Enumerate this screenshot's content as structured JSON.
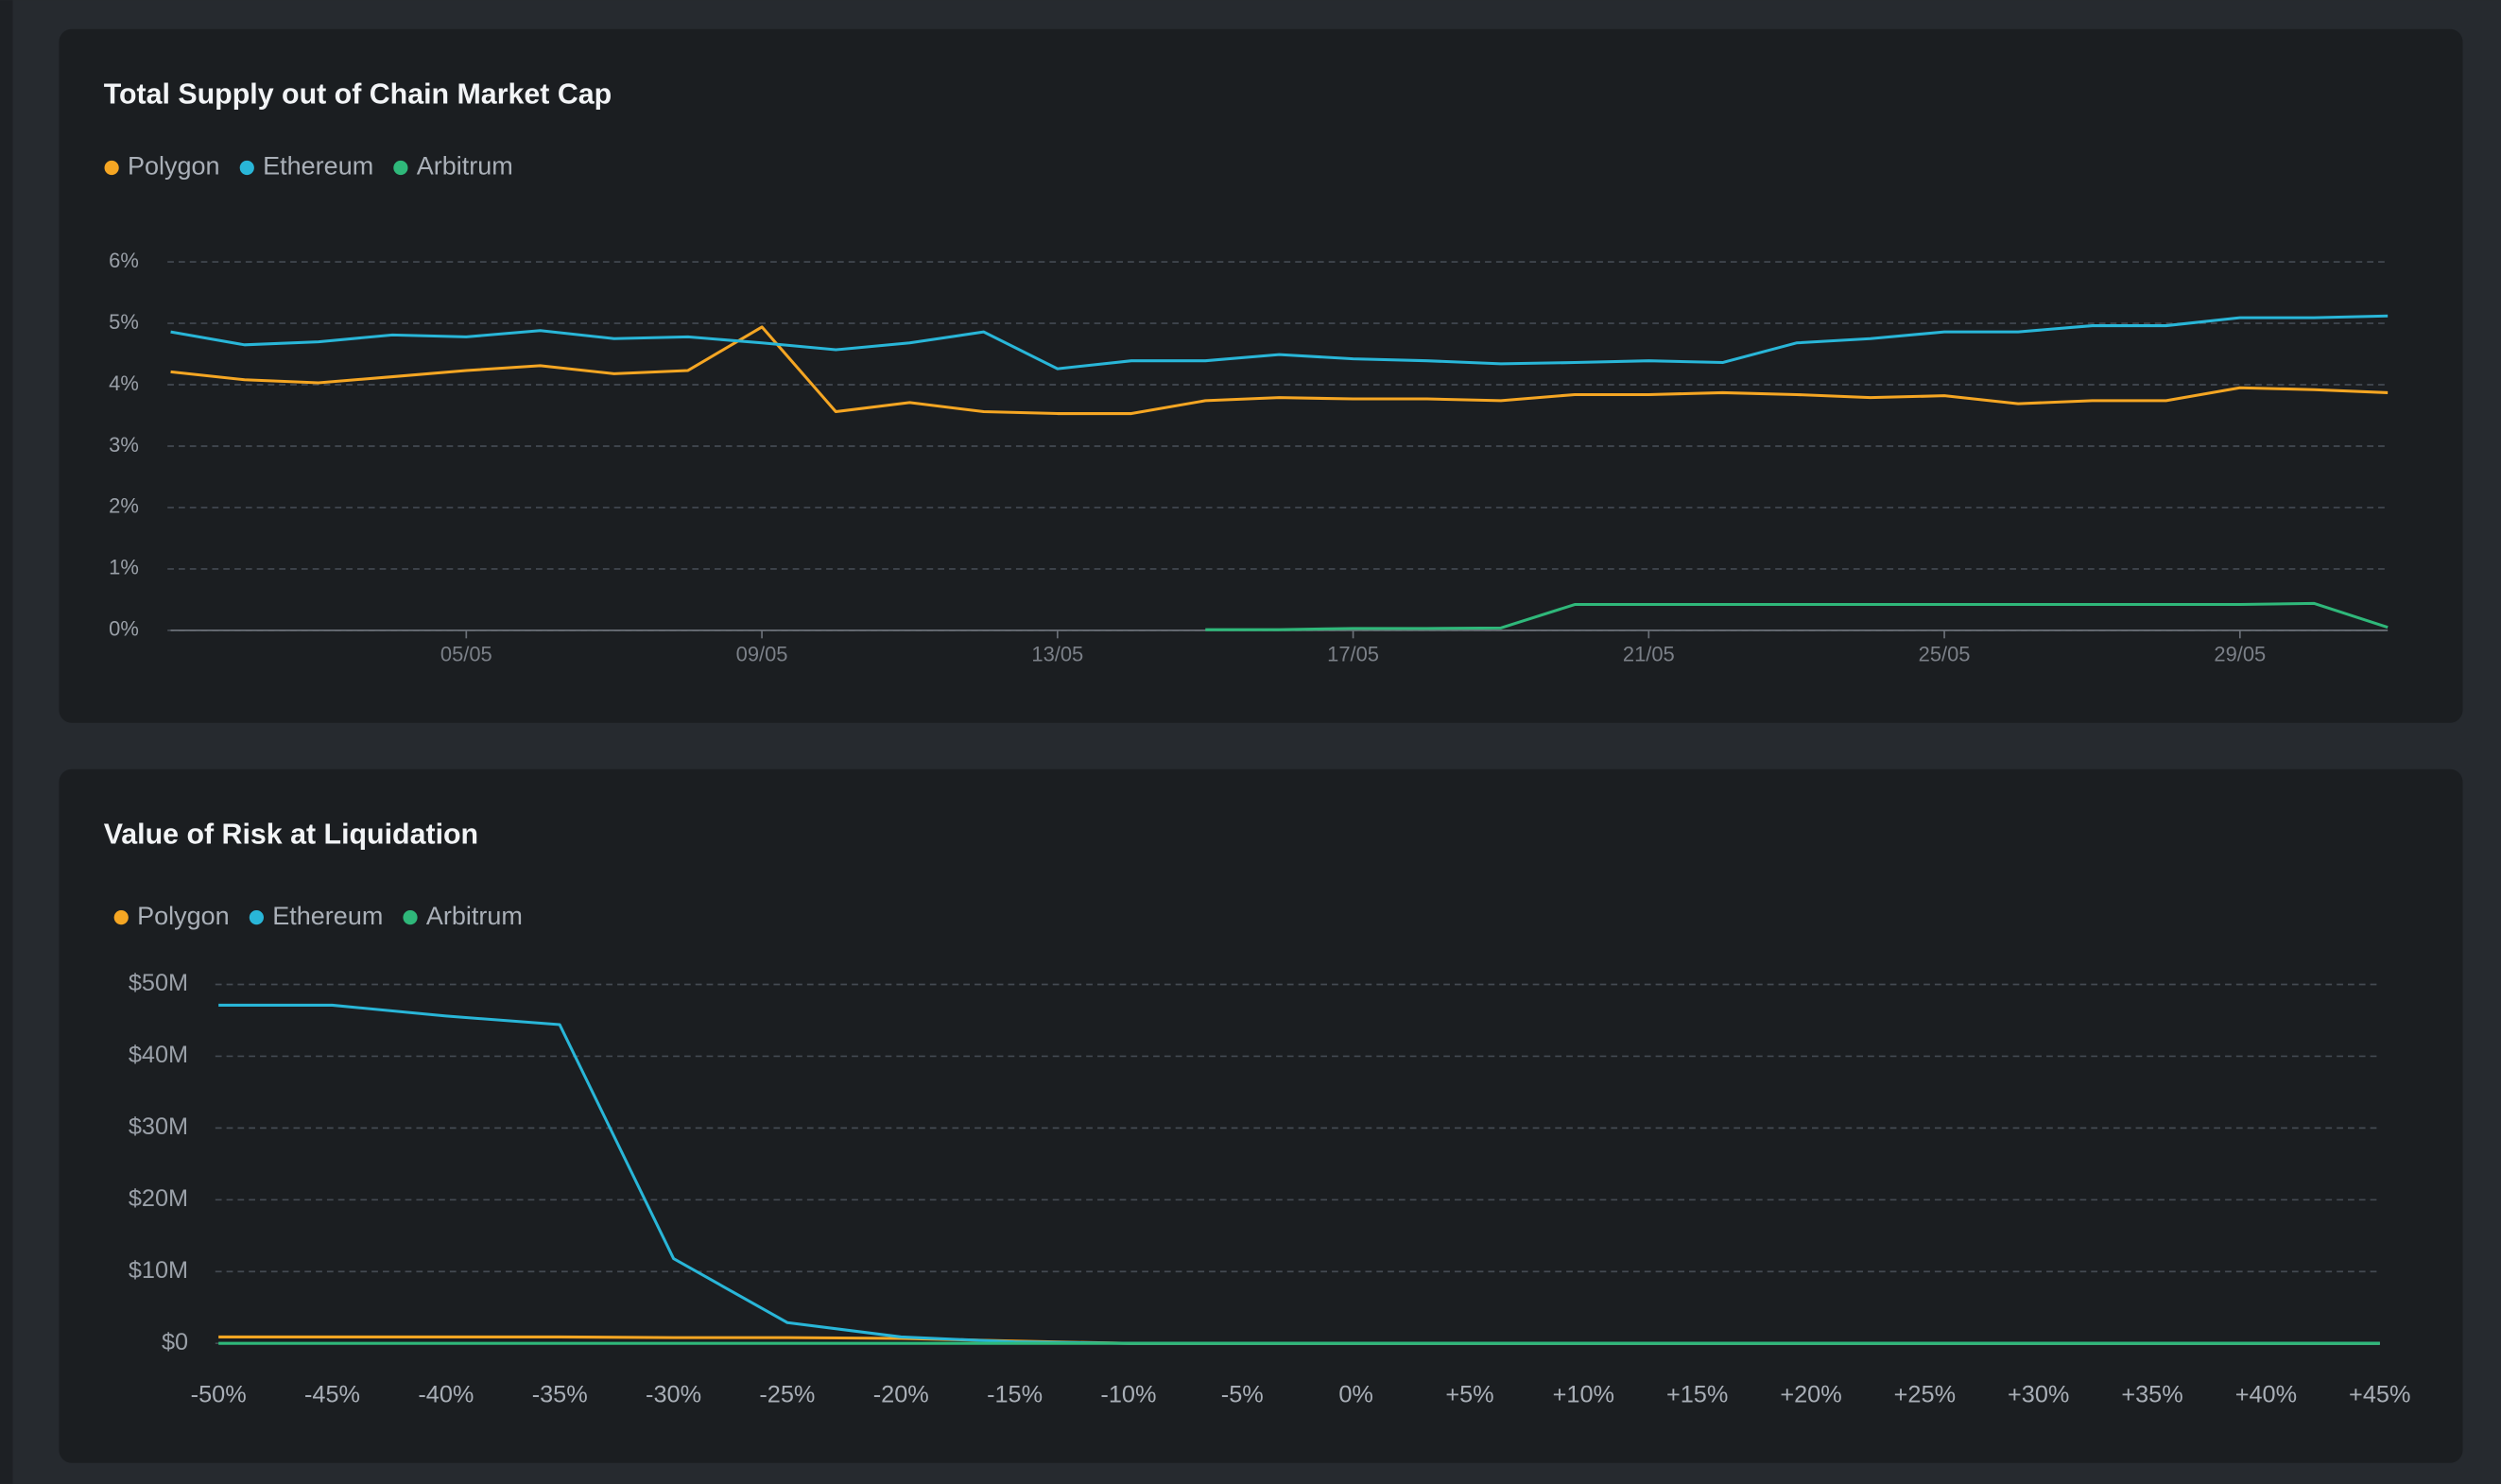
{
  "chart_data": [
    {
      "type": "line",
      "title": "Total Supply out of Chain Market Cap",
      "grid": true,
      "legend": "top-left",
      "categories": [
        null,
        null,
        null,
        null,
        "05/05",
        null,
        null,
        null,
        "09/05",
        null,
        null,
        null,
        "13/05",
        null,
        null,
        null,
        "17/05",
        null,
        null,
        null,
        "21/05",
        null,
        null,
        null,
        "25/05",
        null,
        null,
        null,
        "29/05",
        null,
        null
      ],
      "ylim": [
        0,
        6
      ],
      "yticks": [
        {
          "value": 0,
          "label": "0%"
        },
        {
          "value": 1,
          "label": "1%"
        },
        {
          "value": 2,
          "label": "2%"
        },
        {
          "value": 3,
          "label": "3%"
        },
        {
          "value": 4,
          "label": "4%"
        },
        {
          "value": 5,
          "label": "5%"
        },
        {
          "value": 6,
          "label": "6%"
        }
      ],
      "series": [
        {
          "name": "Polygon",
          "color": "#f5a623",
          "values": [
            4.21,
            4.08,
            4.03,
            4.13,
            4.23,
            4.31,
            4.18,
            4.23,
            4.94,
            3.56,
            3.71,
            3.56,
            3.53,
            3.53,
            3.74,
            3.79,
            3.77,
            3.77,
            3.74,
            3.84,
            3.84,
            3.87,
            3.84,
            3.79,
            3.82,
            3.69,
            3.74,
            3.74,
            3.95,
            3.92,
            3.87
          ]
        },
        {
          "name": "Ethereum",
          "color": "#29b6d8",
          "values": [
            4.86,
            4.65,
            4.7,
            4.81,
            4.78,
            4.88,
            4.75,
            4.78,
            4.68,
            4.57,
            4.68,
            4.86,
            4.26,
            4.39,
            4.39,
            4.49,
            4.42,
            4.39,
            4.34,
            4.36,
            4.39,
            4.36,
            4.68,
            4.75,
            4.86,
            4.86,
            4.96,
            4.96,
            5.09,
            5.09,
            5.12
          ]
        },
        {
          "name": "Arbitrum",
          "color": "#2fb87a",
          "values": [
            null,
            null,
            null,
            null,
            null,
            null,
            null,
            null,
            null,
            null,
            null,
            null,
            null,
            null,
            0.01,
            0.01,
            0.03,
            0.03,
            0.04,
            0.42,
            0.42,
            0.42,
            0.42,
            0.42,
            0.42,
            0.42,
            0.42,
            0.42,
            0.42,
            0.44,
            0.05
          ]
        }
      ]
    },
    {
      "type": "line",
      "title": "Value of Risk at Liquidation",
      "grid": true,
      "legend": "top-left",
      "categories": [
        "-50%",
        "-45%",
        "-40%",
        "-35%",
        "-30%",
        "-25%",
        "-20%",
        "-15%",
        "-10%",
        "-5%",
        "0%",
        "+5%",
        "+10%",
        "+15%",
        "+20%",
        "+25%",
        "+30%",
        "+35%",
        "+40%",
        "+45%"
      ],
      "ylim": [
        0,
        50000000
      ],
      "yticks": [
        {
          "value": 0,
          "label": "$0"
        },
        {
          "value": 10000000,
          "label": "$10M"
        },
        {
          "value": 20000000,
          "label": "$20M"
        },
        {
          "value": 30000000,
          "label": "$30M"
        },
        {
          "value": 40000000,
          "label": "$40M"
        },
        {
          "value": 50000000,
          "label": "$50M"
        }
      ],
      "series": [
        {
          "name": "Polygon",
          "color": "#f5a623",
          "values": [
            900000,
            900000,
            900000,
            900000,
            800000,
            800000,
            700000,
            300000,
            0,
            0,
            0,
            0,
            0,
            0,
            0,
            0,
            0,
            0,
            0,
            0
          ]
        },
        {
          "name": "Ethereum",
          "color": "#29b6d8",
          "values": [
            47100000,
            47100000,
            45600000,
            44400000,
            11800000,
            2900000,
            900000,
            200000,
            0,
            0,
            0,
            0,
            0,
            0,
            0,
            0,
            0,
            0,
            0,
            0
          ]
        },
        {
          "name": "Arbitrum",
          "color": "#2fb87a",
          "values": [
            0,
            0,
            0,
            0,
            0,
            0,
            0,
            0,
            0,
            0,
            0,
            0,
            0,
            0,
            0,
            0,
            0,
            0,
            0,
            0
          ]
        }
      ]
    }
  ]
}
